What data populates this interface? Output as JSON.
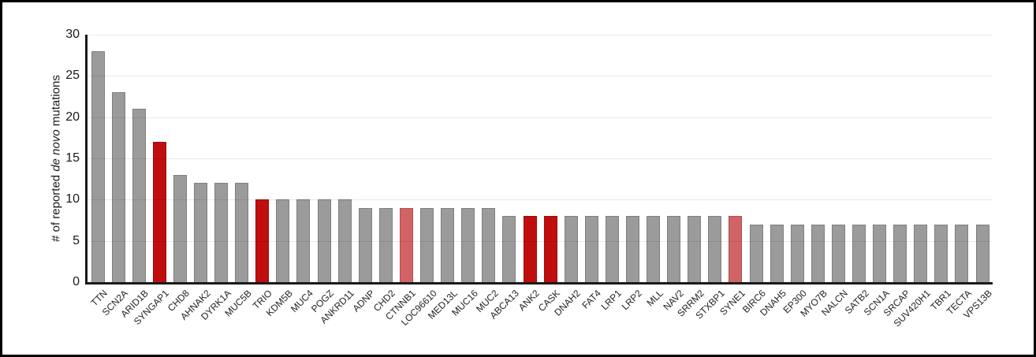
{
  "chart_data": {
    "type": "bar",
    "title": "",
    "xlabel": "",
    "ylabel_text": "# of reported de novo mutations",
    "ylabel_parts": {
      "prefix": "# of reported ",
      "italic": "de novo",
      "suffix": " mutations"
    },
    "ylim": [
      0,
      30
    ],
    "yticks": [
      0,
      5,
      10,
      15,
      20,
      25,
      30
    ],
    "grid": "horizontal-over-bars",
    "legend": "none",
    "bar_colors": {
      "default": "#9B9B9B",
      "dark_red": "#C00D0E",
      "light_red": "#D26364"
    },
    "categories": [
      "TTN",
      "SCN2A",
      "ARID1B",
      "SYNGAP1",
      "CHD8",
      "AHNAK2",
      "DYRK1A",
      "MUC5B",
      "TRIO",
      "KDM5B",
      "MUC4",
      "POGZ",
      "ANKRD11",
      "ADNP",
      "CHD2",
      "CTNNB1",
      "LOC96610",
      "MED13L",
      "MUC16",
      "MUC2",
      "ABCA13",
      "ANK2",
      "CASK",
      "DNAH2",
      "FAT4",
      "LRP1",
      "LRP2",
      "MLL",
      "NAV2",
      "SRRM2",
      "STXBP1",
      "SYNE1",
      "BIRC6",
      "DNAH5",
      "EP300",
      "MYO7B",
      "NALCN",
      "SATB2",
      "SCN1A",
      "SRCAP",
      "SUV420H1",
      "TBR1",
      "TECTA",
      "VPS13B"
    ],
    "values": [
      28,
      23,
      21,
      17,
      13,
      12,
      12,
      12,
      10,
      10,
      10,
      10,
      10,
      9,
      9,
      9,
      9,
      9,
      9,
      9,
      8,
      8,
      8,
      8,
      8,
      8,
      8,
      8,
      8,
      8,
      8,
      8,
      7,
      7,
      7,
      7,
      7,
      7,
      7,
      7,
      7,
      7,
      7,
      7
    ],
    "colors": [
      "default",
      "default",
      "default",
      "dark_red",
      "default",
      "default",
      "default",
      "default",
      "dark_red",
      "default",
      "default",
      "default",
      "default",
      "default",
      "default",
      "light_red",
      "default",
      "default",
      "default",
      "default",
      "default",
      "dark_red",
      "dark_red",
      "default",
      "default",
      "default",
      "default",
      "default",
      "default",
      "default",
      "default",
      "light_red",
      "default",
      "default",
      "default",
      "default",
      "default",
      "default",
      "default",
      "default",
      "default",
      "default",
      "default",
      "default"
    ]
  }
}
